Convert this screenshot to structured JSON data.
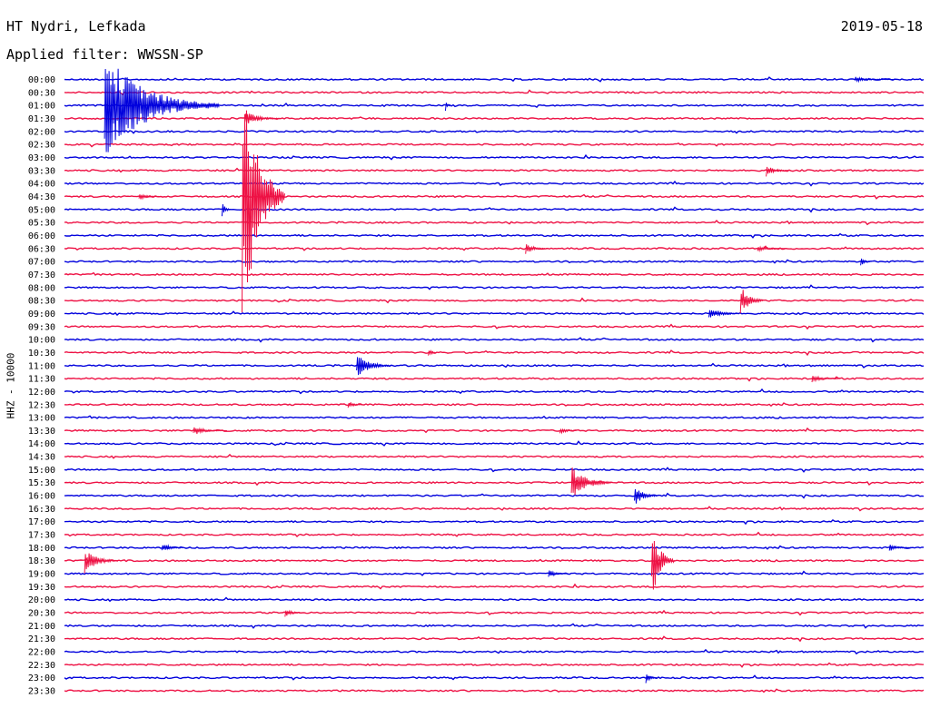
{
  "header": {
    "station": "HT Nydri, Lefkada",
    "date": "2019-05-18",
    "filter_label": "Applied filter: WWSSN-SP",
    "channel_label": "HHZ - 10000"
  },
  "colors": {
    "trace_a": "#0000dd",
    "trace_b": "#ee1144"
  },
  "chart_data": {
    "type": "line",
    "title": "HT Nydri, Lefkada",
    "subtitle": "Applied filter: WWSSN-SP",
    "ylabel": "HHZ - 10000",
    "rows": [
      "00:00",
      "00:30",
      "01:00",
      "01:30",
      "02:00",
      "02:30",
      "03:00",
      "03:30",
      "04:00",
      "04:30",
      "05:00",
      "05:30",
      "06:00",
      "06:30",
      "07:00",
      "07:30",
      "08:00",
      "08:30",
      "09:00",
      "09:30",
      "10:00",
      "10:30",
      "11:00",
      "11:30",
      "12:00",
      "12:30",
      "13:00",
      "13:30",
      "14:00",
      "14:30",
      "15:00",
      "15:30",
      "16:00",
      "16:30",
      "17:00",
      "17:30",
      "18:00",
      "18:30",
      "19:00",
      "19:30",
      "20:00",
      "20:30",
      "21:00",
      "21:30",
      "22:00",
      "22:30",
      "23:00",
      "23:30"
    ],
    "row_minutes": 30,
    "series_colors": [
      "#0000dd",
      "#ee1144"
    ],
    "events": [
      {
        "row": "00:00",
        "minute": 27.6,
        "amplitude": 3,
        "duration": 1.5
      },
      {
        "row": "01:00",
        "minute": 1.4,
        "amplitude": 60,
        "duration": 4
      },
      {
        "row": "01:00",
        "minute": 13.3,
        "amplitude": 6,
        "duration": 0.2
      },
      {
        "row": "01:30",
        "minute": 6.3,
        "amplitude": 9,
        "duration": 1.2
      },
      {
        "row": "03:30",
        "minute": 24.5,
        "amplitude": 7,
        "duration": 0.8
      },
      {
        "row": "04:30",
        "minute": 2.6,
        "amplitude": 4,
        "duration": 0.8
      },
      {
        "row": "04:30",
        "minute": 6.2,
        "amplitude": 160,
        "duration": 1.5
      },
      {
        "row": "05:00",
        "minute": 5.5,
        "amplitude": 10,
        "duration": 0.3
      },
      {
        "row": "06:30",
        "minute": 16.1,
        "amplitude": 6,
        "duration": 0.8
      },
      {
        "row": "06:30",
        "minute": 24.2,
        "amplitude": 4,
        "duration": 1
      },
      {
        "row": "07:00",
        "minute": 27.8,
        "amplitude": 6,
        "duration": 0.4
      },
      {
        "row": "08:30",
        "minute": 23.6,
        "amplitude": 18,
        "duration": 0.8
      },
      {
        "row": "09:00",
        "minute": 22.5,
        "amplitude": 8,
        "duration": 1
      },
      {
        "row": "10:30",
        "minute": 12.7,
        "amplitude": 6,
        "duration": 0.3
      },
      {
        "row": "11:00",
        "minute": 10.2,
        "amplitude": 14,
        "duration": 1.2
      },
      {
        "row": "11:30",
        "minute": 26.1,
        "amplitude": 4,
        "duration": 1
      },
      {
        "row": "12:30",
        "minute": 9.9,
        "amplitude": 5,
        "duration": 0.5
      },
      {
        "row": "13:30",
        "minute": 4.5,
        "amplitude": 5,
        "duration": 1.2
      },
      {
        "row": "13:30",
        "minute": 17.3,
        "amplitude": 4,
        "duration": 0.6
      },
      {
        "row": "15:30",
        "minute": 17.7,
        "amplitude": 20,
        "duration": 1.4
      },
      {
        "row": "16:00",
        "minute": 19.9,
        "amplitude": 12,
        "duration": 0.8
      },
      {
        "row": "18:00",
        "minute": 3.4,
        "amplitude": 6,
        "duration": 0.8
      },
      {
        "row": "18:00",
        "minute": 28.8,
        "amplitude": 4,
        "duration": 0.8
      },
      {
        "row": "18:30",
        "minute": 0.7,
        "amplitude": 14,
        "duration": 1.2
      },
      {
        "row": "18:30",
        "minute": 20.5,
        "amplitude": 45,
        "duration": 0.8
      },
      {
        "row": "19:00",
        "minute": 16.9,
        "amplitude": 5,
        "duration": 0.7
      },
      {
        "row": "20:30",
        "minute": 7.7,
        "amplitude": 5,
        "duration": 0.7
      },
      {
        "row": "23:00",
        "minute": 20.3,
        "amplitude": 7,
        "duration": 0.4
      }
    ]
  }
}
